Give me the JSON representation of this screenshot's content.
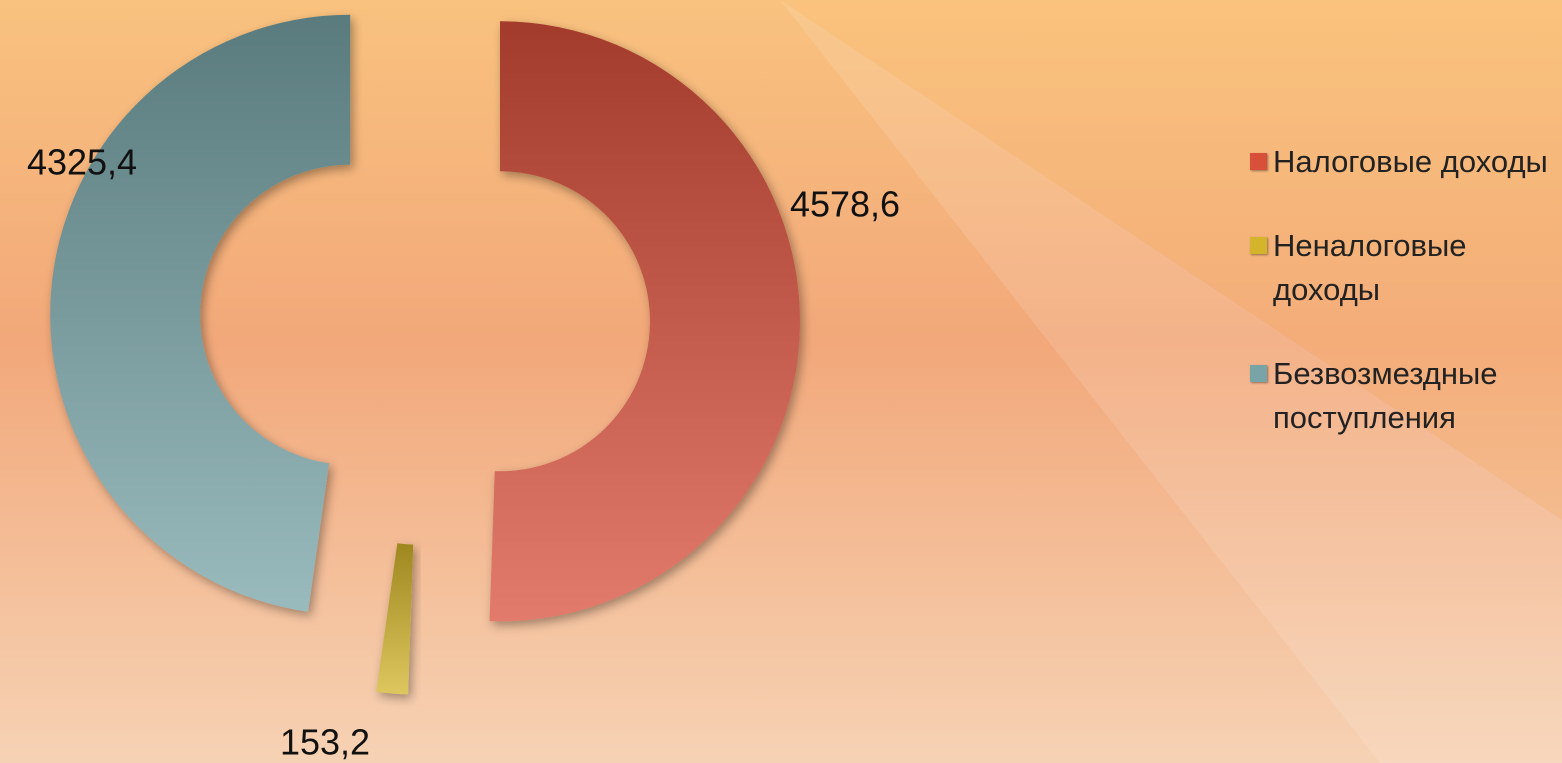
{
  "chart_data": {
    "type": "pie",
    "donut": true,
    "exploded": true,
    "categories": [
      "Налоговые доходы",
      "Неналоговые доходы",
      "Безвозмездные поступления"
    ],
    "values": [
      4578.6,
      153.2,
      4325.4
    ],
    "value_labels": [
      "4578,6",
      "153,2",
      "4325,4"
    ],
    "colors": [
      "#d9503a",
      "#d4b42a",
      "#78a4a8"
    ],
    "legend": "right"
  }
}
